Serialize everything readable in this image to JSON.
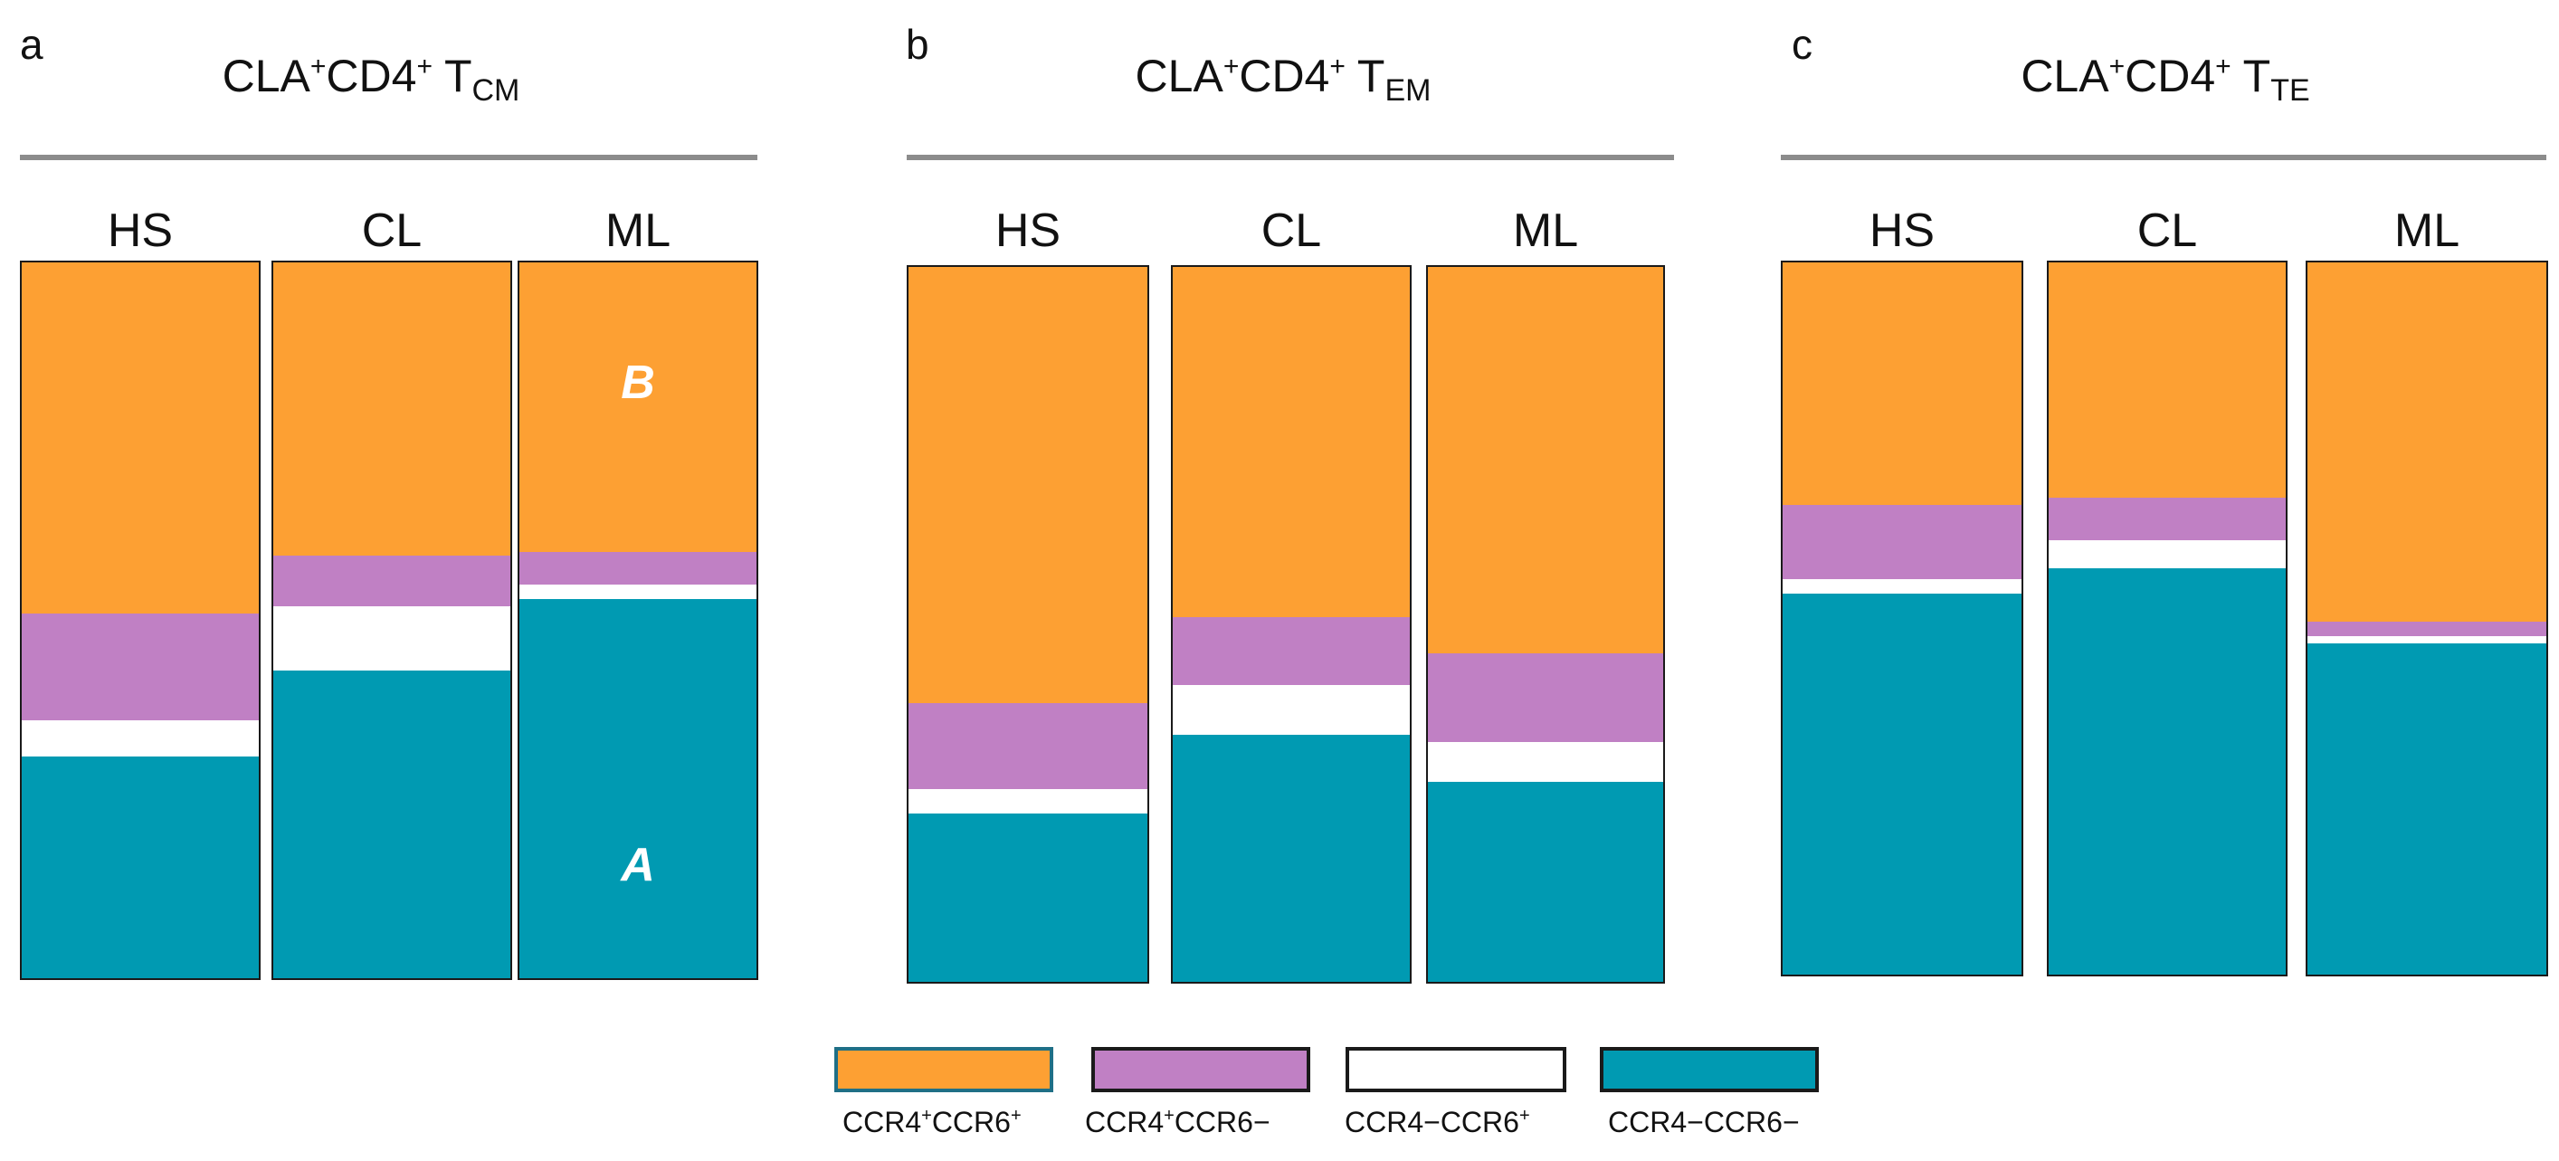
{
  "chart_data": {
    "type": "bar",
    "subtype": "stacked-100-percent",
    "series": [
      {
        "name": "CCR4⁺CCR6⁺",
        "key": "ccr4p_ccr6p",
        "color": "#fda033"
      },
      {
        "name": "CCR4⁺CCR6−",
        "key": "ccr4p_ccr6n",
        "color": "#c080c4"
      },
      {
        "name": "CCR4−CCR6⁺",
        "key": "ccr4n_ccr6p",
        "color": "#ffffff"
      },
      {
        "name": "CCR4−CCR6−",
        "key": "ccr4n_ccr6n",
        "color": "#009ab2"
      }
    ],
    "legend_order_note": "stacking from top: CCR4⁺CCR6⁺, CCR4⁺CCR6−, CCR4−CCR6⁺, CCR4−CCR6−",
    "legend": {
      "placement": "bottom",
      "labels": [
        {
          "main": "CCR4",
          "sup1": "+",
          "mid": "CCR6",
          "sup2": "+"
        },
        {
          "main": "CCR4",
          "sup1": "+",
          "mid": "CCR6−",
          "sup2": ""
        },
        {
          "main": "CCR4−CCR6",
          "sup1": "",
          "mid": "",
          "sup2": "+"
        },
        {
          "main": "CCR4−CCR6−",
          "sup1": "",
          "mid": "",
          "sup2": ""
        }
      ]
    },
    "ylim": [
      0,
      100
    ],
    "panels": [
      {
        "letter": "a",
        "title": {
          "t1": "CLA",
          "s1": "+",
          "t2": "CD4",
          "s2": "+",
          "t3": " T",
          "sub": "CM"
        },
        "categories": [
          "HS",
          "CL",
          "ML"
        ],
        "values": [
          [
            49,
            15,
            5,
            31
          ],
          [
            41,
            7,
            9,
            43
          ],
          [
            40.5,
            4.5,
            2,
            53
          ]
        ],
        "annotations": [
          {
            "text": "B",
            "category": "ML",
            "at": 83
          },
          {
            "text": "A",
            "category": "ML",
            "at": 16
          }
        ]
      },
      {
        "letter": "b",
        "title": {
          "t1": "CLA",
          "s1": "+",
          "t2": "CD4",
          "s2": "+",
          "t3": " T",
          "sub": "EM"
        },
        "categories": [
          "HS",
          "CL",
          "ML"
        ],
        "values": [
          [
            61,
            12,
            3.5,
            23.5
          ],
          [
            49,
            9.5,
            7,
            34.5
          ],
          [
            54,
            12.5,
            5.5,
            28
          ]
        ],
        "annotations": []
      },
      {
        "letter": "c",
        "title": {
          "t1": "CLA",
          "s1": "+",
          "t2": "CD4",
          "s2": "+",
          "t3": " T",
          "sub": "TE"
        },
        "categories": [
          "HS",
          "CL",
          "ML"
        ],
        "values": [
          [
            34,
            10.5,
            2,
            53.5
          ],
          [
            33,
            6,
            4,
            57
          ],
          [
            50.5,
            2,
            1,
            46.5
          ]
        ],
        "annotations": []
      }
    ]
  }
}
